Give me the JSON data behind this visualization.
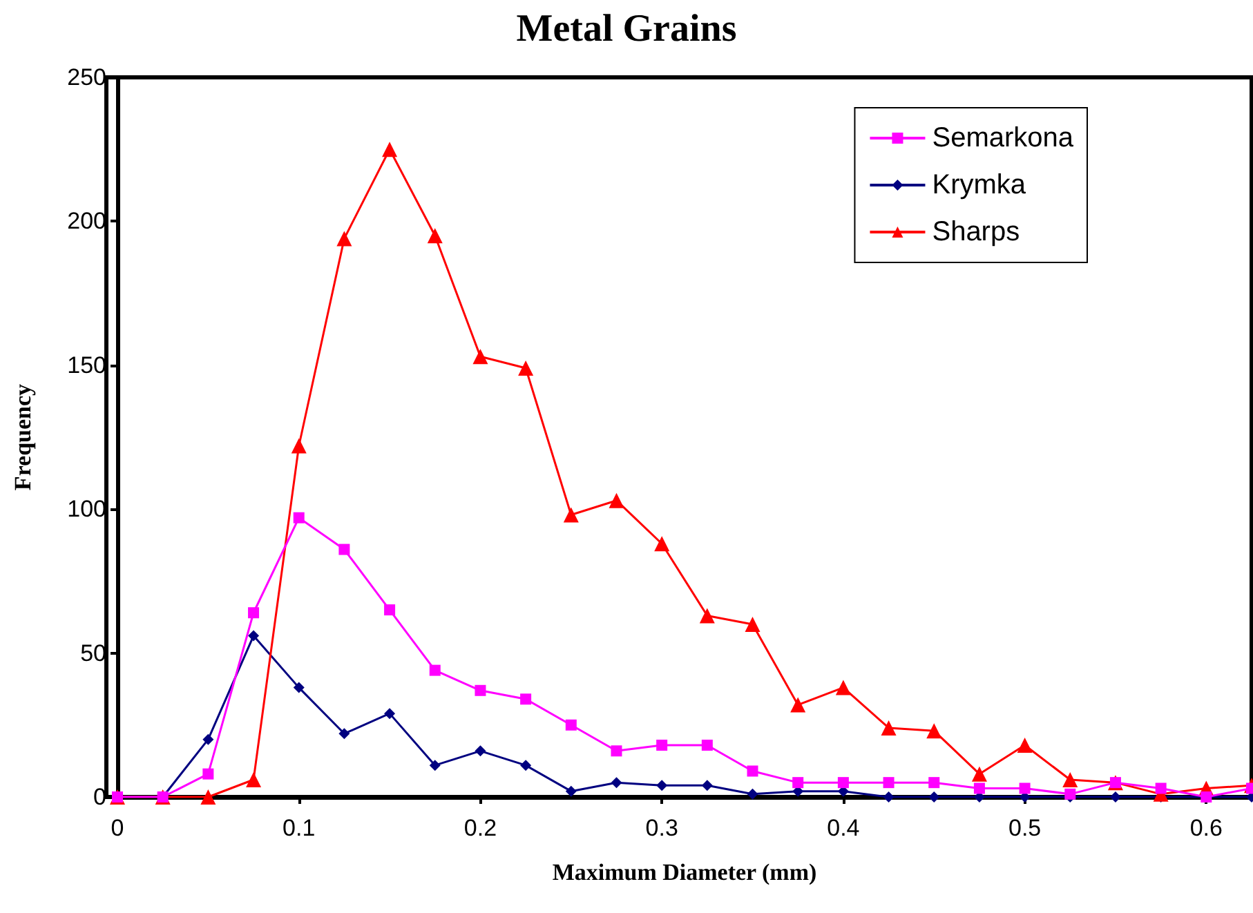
{
  "chart_data": {
    "type": "line",
    "title": "Metal Grains",
    "xlabel": "Maximum Diameter (mm)",
    "ylabel": "Frequency",
    "x": [
      0,
      0.025,
      0.05,
      0.075,
      0.1,
      0.125,
      0.15,
      0.175,
      0.2,
      0.225,
      0.25,
      0.275,
      0.3,
      0.325,
      0.35,
      0.375,
      0.4,
      0.425,
      0.45,
      0.475,
      0.5,
      0.525,
      0.55,
      0.575,
      0.6,
      0.625
    ],
    "series": [
      {
        "name": "Semarkona",
        "color": "#ff00ff",
        "marker": "square",
        "values": [
          0,
          0,
          8,
          64,
          97,
          86,
          65,
          44,
          37,
          34,
          25,
          16,
          18,
          18,
          9,
          5,
          5,
          5,
          5,
          3,
          3,
          1,
          5,
          3,
          0,
          3
        ]
      },
      {
        "name": "Krymka",
        "color": "#000080",
        "marker": "diamond",
        "values": [
          0,
          0,
          20,
          56,
          38,
          22,
          29,
          11,
          16,
          11,
          2,
          5,
          4,
          4,
          1,
          2,
          2,
          0,
          0,
          0,
          0,
          0,
          0,
          0,
          0,
          0
        ]
      },
      {
        "name": "Sharps",
        "color": "#ff0000",
        "marker": "triangle",
        "values": [
          0,
          0,
          0,
          6,
          122,
          194,
          225,
          195,
          153,
          149,
          98,
          103,
          88,
          63,
          60,
          32,
          38,
          24,
          23,
          8,
          18,
          6,
          5,
          1,
          3,
          4
        ]
      }
    ],
    "xlim": [
      0,
      0.625
    ],
    "xticks": [
      0,
      0.1,
      0.2,
      0.3,
      0.4,
      0.5,
      0.6
    ],
    "ylim": [
      0,
      250
    ],
    "yticks": [
      0,
      50,
      100,
      150,
      200,
      250
    ],
    "grid": false,
    "legend": "top right",
    "line_style": "solid"
  }
}
